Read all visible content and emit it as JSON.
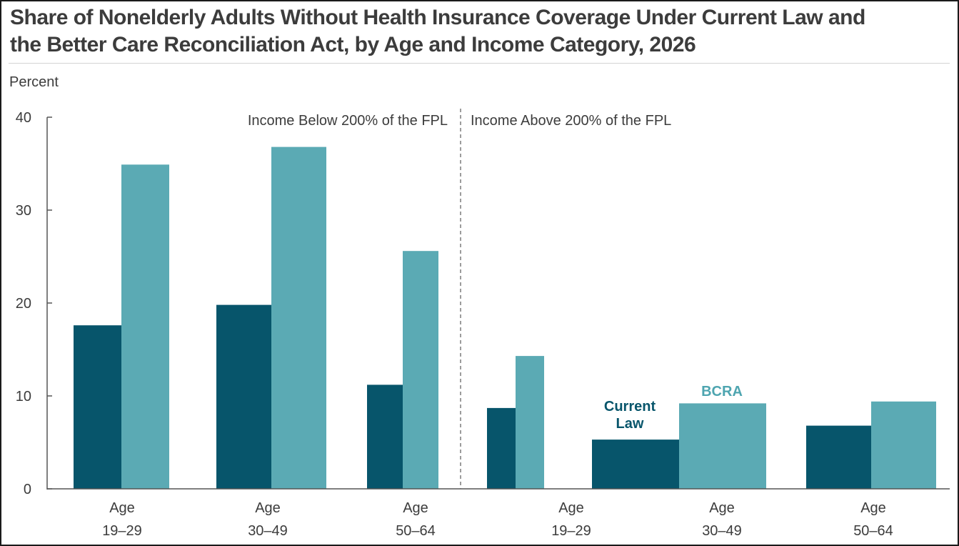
{
  "title_line1": "Share of Nonelderly Adults Without Health Insurance Coverage Under Current Law and",
  "title_line2": "the Better Care Reconciliation Act, by Age and Income Category, 2026",
  "chart_data": {
    "type": "bar",
    "title": "Share of Nonelderly Adults Without Health Insurance Coverage Under Current Law and the Better Care Reconciliation Act, by Age and Income Category, 2026",
    "ylabel": "Percent",
    "ylim": [
      0,
      40
    ],
    "yticks": [
      0,
      10,
      20,
      30,
      40
    ],
    "groups": [
      {
        "label": "Income Below 200% of the FPL",
        "categories": [
          0,
          1,
          2
        ]
      },
      {
        "label": "Income Above 200% of the FPL",
        "categories": [
          3,
          4,
          5
        ]
      }
    ],
    "categories": [
      {
        "line1": "Age",
        "line2": "19–29"
      },
      {
        "line1": "Age",
        "line2": "30–49"
      },
      {
        "line1": "Age",
        "line2": "50–64"
      },
      {
        "line1": "Age",
        "line2": "19–29"
      },
      {
        "line1": "Age",
        "line2": "30–49"
      },
      {
        "line1": "Age",
        "line2": "50–64"
      }
    ],
    "series": [
      {
        "name": "Current Law",
        "label_line1": "Current",
        "label_line2": "Law",
        "color": "#07556b",
        "values": [
          17.6,
          19.8,
          11.2,
          8.7,
          5.3,
          6.8
        ]
      },
      {
        "name": "BCRA",
        "label_line1": "BCRA",
        "color": "#5baab4",
        "values": [
          34.9,
          36.8,
          25.6,
          14.3,
          9.2,
          9.4
        ]
      }
    ],
    "legend": "direct labels on the Age 30–49 (above 200% FPL) bars",
    "grid": false
  },
  "colors": {
    "axis": "#555555",
    "text": "#3c3c3c",
    "current_law_label": "#07556b",
    "bcra_label": "#4ea5b0"
  }
}
